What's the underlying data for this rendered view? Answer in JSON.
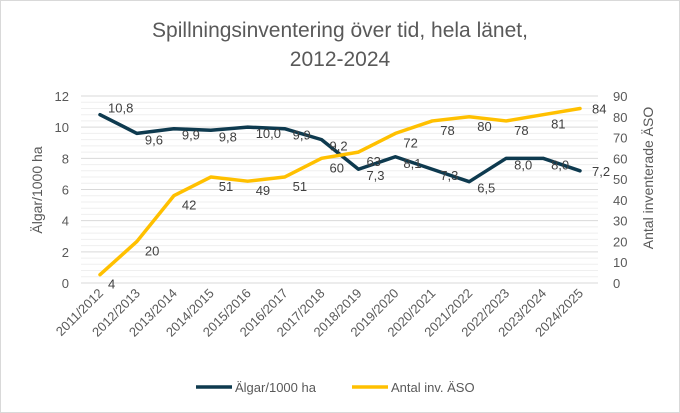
{
  "chart_data": {
    "type": "line",
    "title_lines": [
      "Spillningsinventering över tid, hela länet,",
      "2012-2024"
    ],
    "categories": [
      "2011/2012",
      "2012/2013",
      "2013/2014",
      "2014/2015",
      "2015/2016",
      "2016/2017",
      "2017/2018",
      "2018/2019",
      "2019/2020",
      "2020/2021",
      "2021/2022",
      "2022/2023",
      "2023/2024",
      "2024/2025"
    ],
    "series": [
      {
        "name": "Älgar/1000 ha",
        "axis": "left",
        "color": "#0e3a4f",
        "values": [
          10.8,
          9.6,
          9.9,
          9.8,
          10.0,
          9.9,
          9.2,
          7.3,
          8.1,
          7.3,
          6.5,
          8.0,
          8.0,
          7.2
        ],
        "labels": [
          "10,8",
          "9,6",
          "9,9",
          "9,8",
          "10,0",
          "9,9",
          "9,2",
          "7,3",
          "8,1",
          "7,3",
          "6,5",
          "8,0",
          "8,0",
          "7,2"
        ]
      },
      {
        "name": "Antal inv. ÄSO",
        "axis": "right",
        "color": "#ffc000",
        "values": [
          4,
          20,
          42,
          51,
          49,
          51,
          60,
          63,
          72,
          78,
          80,
          78,
          81,
          84
        ],
        "labels": [
          "4",
          "20",
          "42",
          "51",
          "49",
          "51",
          "60",
          "63",
          "72",
          "78",
          "80",
          "78",
          "81",
          "84"
        ]
      }
    ],
    "ylabel": "Älgar/1000 ha",
    "y2label": "Antal inventerade ÄSO",
    "ylim": [
      0,
      12
    ],
    "y2lim": [
      0,
      90
    ],
    "yticks": [
      "0",
      "2",
      "4",
      "6",
      "8",
      "10",
      "12"
    ],
    "y2ticks": [
      "0",
      "10",
      "20",
      "30",
      "40",
      "50",
      "60",
      "70",
      "80",
      "90"
    ],
    "grid": true,
    "legend_position": "bottom"
  }
}
